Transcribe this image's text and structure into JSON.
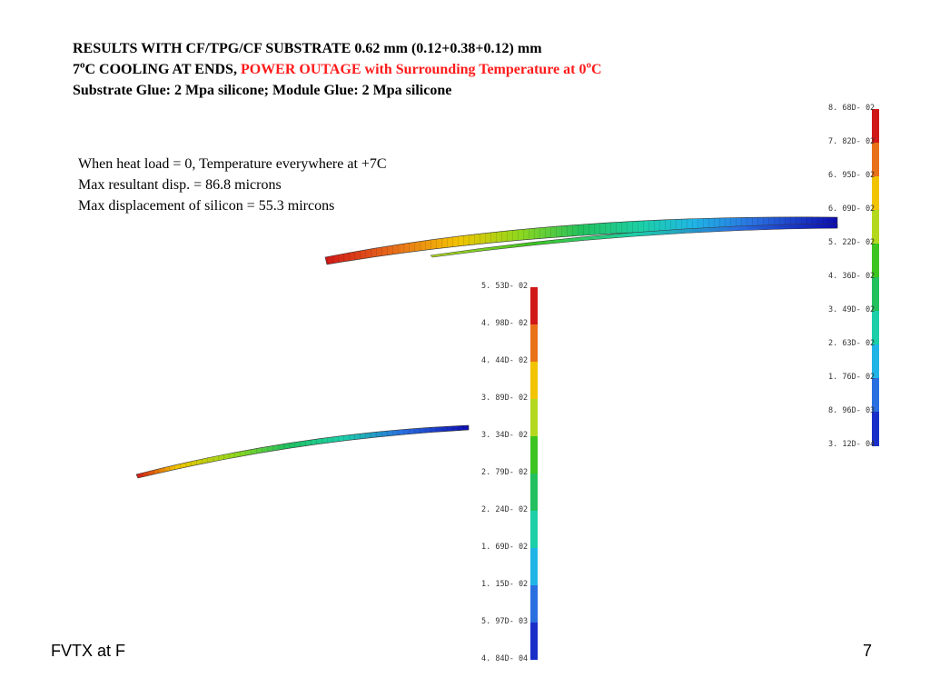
{
  "header": {
    "line1": "RESULTS WITH CF/TPG/CF SUBSTRATE 0.62 mm (0.12+0.38+0.12) mm",
    "line2_a": "7",
    "line2_sup1": "o",
    "line2_b": "C COOLING AT ENDS, ",
    "line2_red_a": "POWER OUTAGE with Surrounding Temperature at 0",
    "line2_sup2": "o",
    "line2_red_b": "C",
    "line3": "Substrate Glue: 2 Mpa silicone;  Module Glue: 2 Mpa silicone"
  },
  "notes": {
    "l1": "When heat load = 0, Temperature everywhere at +7C",
    "l2": "Max resultant disp. = 86.8 microns",
    "l3": "Max displacement of silicon = 55.3 mircons"
  },
  "legend_top": [
    "8. 68D- 02",
    "7. 82D- 02",
    "6. 95D- 02",
    "6. 09D- 02",
    "5. 22D- 02",
    "4. 36D- 02",
    "3. 49D- 02",
    "2. 63D- 02",
    "1. 76D- 02",
    "8. 96D- 03",
    "3. 12D- 04"
  ],
  "legend_bottom": [
    "5. 53D- 02",
    "4. 98D- 02",
    "4. 44D- 02",
    "3. 89D- 02",
    "3. 34D- 02",
    "2. 79D- 02",
    "2. 24D- 02",
    "1. 69D- 02",
    "1. 15D- 02",
    "5. 97D- 03",
    "4. 84D- 04"
  ],
  "legend_colors": [
    "#d11818",
    "#e8711a",
    "#f2c400",
    "#b4d81e",
    "#3ec421",
    "#22c05e",
    "#1ccfa8",
    "#20b4e6",
    "#2a6fe0",
    "#1a2fc8",
    "#0d0db0"
  ],
  "footer": {
    "left": "FVTX at F",
    "page": "7"
  }
}
